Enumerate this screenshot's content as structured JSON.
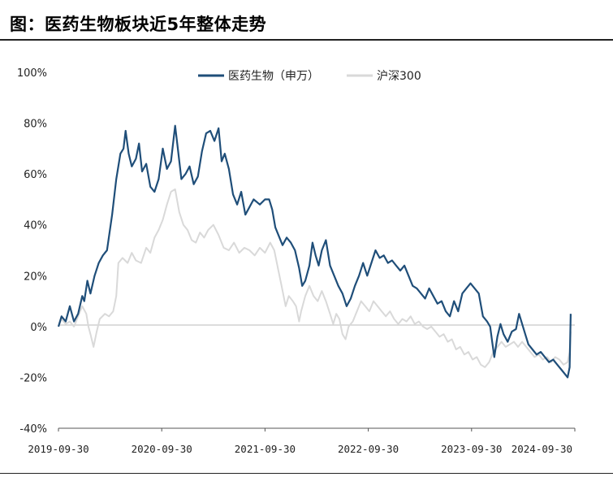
{
  "figure_title": "图：医药生物板块近5年整体走势",
  "chart_data": {
    "type": "line",
    "title": "",
    "xlabel": "",
    "ylabel": "",
    "ylim": [
      -40,
      100
    ],
    "y_ticks": [
      -40,
      -20,
      0,
      20,
      40,
      60,
      80,
      100
    ],
    "y_tick_labels": [
      "-40%",
      "-20%",
      "0%",
      "20%",
      "40%",
      "60%",
      "80%",
      "100%"
    ],
    "x_tick_labels": [
      "2019-09-30",
      "2020-09-30",
      "2021-09-30",
      "2022-09-30",
      "2023-09-30",
      "2024-09-30"
    ],
    "x_range_years": [
      2019.75,
      2024.75
    ],
    "grid": false,
    "legend_position": "top-center",
    "series": [
      {
        "name": "医药生物（申万）",
        "color": "#1f4e79",
        "points": [
          [
            2019.75,
            0
          ],
          [
            2019.78,
            4
          ],
          [
            2019.82,
            2
          ],
          [
            2019.86,
            8
          ],
          [
            2019.9,
            2
          ],
          [
            2019.94,
            5
          ],
          [
            2019.98,
            12
          ],
          [
            2020.0,
            10
          ],
          [
            2020.03,
            18
          ],
          [
            2020.06,
            13
          ],
          [
            2020.1,
            20
          ],
          [
            2020.14,
            25
          ],
          [
            2020.18,
            28
          ],
          [
            2020.22,
            30
          ],
          [
            2020.27,
            44
          ],
          [
            2020.31,
            58
          ],
          [
            2020.35,
            68
          ],
          [
            2020.38,
            70
          ],
          [
            2020.4,
            77
          ],
          [
            2020.43,
            68
          ],
          [
            2020.46,
            63
          ],
          [
            2020.5,
            66
          ],
          [
            2020.53,
            72
          ],
          [
            2020.56,
            61
          ],
          [
            2020.6,
            64
          ],
          [
            2020.64,
            55
          ],
          [
            2020.68,
            53
          ],
          [
            2020.72,
            58
          ],
          [
            2020.76,
            70
          ],
          [
            2020.8,
            62
          ],
          [
            2020.84,
            65
          ],
          [
            2020.88,
            79
          ],
          [
            2020.9,
            72
          ],
          [
            2020.94,
            58
          ],
          [
            2020.98,
            60
          ],
          [
            2021.02,
            63
          ],
          [
            2021.06,
            56
          ],
          [
            2021.1,
            59
          ],
          [
            2021.14,
            69
          ],
          [
            2021.18,
            76
          ],
          [
            2021.22,
            77
          ],
          [
            2021.26,
            73
          ],
          [
            2021.3,
            78
          ],
          [
            2021.33,
            65
          ],
          [
            2021.36,
            68
          ],
          [
            2021.4,
            62
          ],
          [
            2021.44,
            52
          ],
          [
            2021.48,
            48
          ],
          [
            2021.52,
            53
          ],
          [
            2021.56,
            44
          ],
          [
            2021.6,
            47
          ],
          [
            2021.64,
            50
          ],
          [
            2021.7,
            48
          ],
          [
            2021.75,
            50
          ],
          [
            2021.79,
            50
          ],
          [
            2021.82,
            46
          ],
          [
            2021.85,
            39
          ],
          [
            2021.88,
            36
          ],
          [
            2021.92,
            32
          ],
          [
            2021.96,
            35
          ],
          [
            2022.0,
            33
          ],
          [
            2022.04,
            30
          ],
          [
            2022.08,
            23
          ],
          [
            2022.11,
            16
          ],
          [
            2022.14,
            18
          ],
          [
            2022.18,
            24
          ],
          [
            2022.21,
            33
          ],
          [
            2022.24,
            28
          ],
          [
            2022.27,
            24
          ],
          [
            2022.3,
            30
          ],
          [
            2022.34,
            34
          ],
          [
            2022.38,
            24
          ],
          [
            2022.42,
            20
          ],
          [
            2022.46,
            16
          ],
          [
            2022.5,
            13
          ],
          [
            2022.54,
            8
          ],
          [
            2022.58,
            11
          ],
          [
            2022.62,
            16
          ],
          [
            2022.66,
            20
          ],
          [
            2022.7,
            25
          ],
          [
            2022.74,
            20
          ],
          [
            2022.78,
            25
          ],
          [
            2022.82,
            30
          ],
          [
            2022.86,
            27
          ],
          [
            2022.9,
            28
          ],
          [
            2022.94,
            25
          ],
          [
            2022.98,
            26
          ],
          [
            2023.02,
            24
          ],
          [
            2023.06,
            22
          ],
          [
            2023.1,
            24
          ],
          [
            2023.14,
            20
          ],
          [
            2023.18,
            16
          ],
          [
            2023.22,
            15
          ],
          [
            2023.26,
            13
          ],
          [
            2023.3,
            11
          ],
          [
            2023.34,
            15
          ],
          [
            2023.38,
            12
          ],
          [
            2023.42,
            9
          ],
          [
            2023.46,
            10
          ],
          [
            2023.5,
            6
          ],
          [
            2023.54,
            4
          ],
          [
            2023.58,
            10
          ],
          [
            2023.62,
            6
          ],
          [
            2023.66,
            13
          ],
          [
            2023.7,
            15
          ],
          [
            2023.74,
            17
          ],
          [
            2023.78,
            15
          ],
          [
            2023.82,
            13
          ],
          [
            2023.86,
            4
          ],
          [
            2023.9,
            2
          ],
          [
            2023.93,
            0
          ],
          [
            2023.95,
            -6
          ],
          [
            2023.97,
            -12
          ],
          [
            2024.0,
            -4
          ],
          [
            2024.03,
            1
          ],
          [
            2024.06,
            -3
          ],
          [
            2024.1,
            -6
          ],
          [
            2024.14,
            -2
          ],
          [
            2024.18,
            -1
          ],
          [
            2024.21,
            5
          ],
          [
            2024.24,
            1
          ],
          [
            2024.27,
            -3
          ],
          [
            2024.3,
            -7
          ],
          [
            2024.34,
            -9
          ],
          [
            2024.38,
            -11
          ],
          [
            2024.42,
            -10
          ],
          [
            2024.46,
            -12
          ],
          [
            2024.5,
            -14
          ],
          [
            2024.54,
            -13
          ],
          [
            2024.58,
            -15
          ],
          [
            2024.62,
            -17
          ],
          [
            2024.66,
            -19
          ],
          [
            2024.68,
            -20
          ],
          [
            2024.7,
            -16
          ],
          [
            2024.71,
            5
          ]
        ]
      },
      {
        "name": "沪深300",
        "color": "#d9d9d9",
        "points": [
          [
            2019.75,
            0
          ],
          [
            2019.78,
            3
          ],
          [
            2019.82,
            1
          ],
          [
            2019.86,
            2
          ],
          [
            2019.9,
            0
          ],
          [
            2019.94,
            4
          ],
          [
            2019.98,
            8
          ],
          [
            2020.02,
            5
          ],
          [
            2020.04,
            0
          ],
          [
            2020.06,
            -3
          ],
          [
            2020.09,
            -8
          ],
          [
            2020.12,
            -2
          ],
          [
            2020.15,
            3
          ],
          [
            2020.2,
            5
          ],
          [
            2020.24,
            4
          ],
          [
            2020.28,
            6
          ],
          [
            2020.31,
            12
          ],
          [
            2020.33,
            25
          ],
          [
            2020.37,
            27
          ],
          [
            2020.42,
            25
          ],
          [
            2020.46,
            29
          ],
          [
            2020.5,
            26
          ],
          [
            2020.55,
            25
          ],
          [
            2020.6,
            31
          ],
          [
            2020.64,
            29
          ],
          [
            2020.68,
            35
          ],
          [
            2020.72,
            38
          ],
          [
            2020.76,
            42
          ],
          [
            2020.8,
            48
          ],
          [
            2020.84,
            53
          ],
          [
            2020.88,
            54
          ],
          [
            2020.92,
            45
          ],
          [
            2020.96,
            40
          ],
          [
            2021.0,
            38
          ],
          [
            2021.04,
            34
          ],
          [
            2021.08,
            33
          ],
          [
            2021.12,
            37
          ],
          [
            2021.16,
            35
          ],
          [
            2021.2,
            38
          ],
          [
            2021.25,
            40
          ],
          [
            2021.3,
            36
          ],
          [
            2021.35,
            31
          ],
          [
            2021.4,
            30
          ],
          [
            2021.45,
            33
          ],
          [
            2021.5,
            29
          ],
          [
            2021.55,
            31
          ],
          [
            2021.6,
            30
          ],
          [
            2021.65,
            28
          ],
          [
            2021.7,
            31
          ],
          [
            2021.75,
            29
          ],
          [
            2021.8,
            33
          ],
          [
            2021.84,
            30
          ],
          [
            2021.88,
            22
          ],
          [
            2021.91,
            16
          ],
          [
            2021.93,
            12
          ],
          [
            2021.95,
            8
          ],
          [
            2021.98,
            12
          ],
          [
            2022.02,
            10
          ],
          [
            2022.05,
            8
          ],
          [
            2022.08,
            2
          ],
          [
            2022.1,
            6
          ],
          [
            2022.14,
            12
          ],
          [
            2022.18,
            16
          ],
          [
            2022.22,
            12
          ],
          [
            2022.26,
            10
          ],
          [
            2022.3,
            14
          ],
          [
            2022.34,
            10
          ],
          [
            2022.38,
            5
          ],
          [
            2022.41,
            1
          ],
          [
            2022.44,
            5
          ],
          [
            2022.47,
            3
          ],
          [
            2022.5,
            -3
          ],
          [
            2022.53,
            -5
          ],
          [
            2022.56,
            0
          ],
          [
            2022.6,
            2
          ],
          [
            2022.64,
            6
          ],
          [
            2022.68,
            10
          ],
          [
            2022.72,
            8
          ],
          [
            2022.76,
            6
          ],
          [
            2022.8,
            10
          ],
          [
            2022.84,
            8
          ],
          [
            2022.88,
            6
          ],
          [
            2022.92,
            4
          ],
          [
            2022.96,
            6
          ],
          [
            2023.0,
            3
          ],
          [
            2023.04,
            1
          ],
          [
            2023.08,
            3
          ],
          [
            2023.12,
            2
          ],
          [
            2023.16,
            4
          ],
          [
            2023.2,
            1
          ],
          [
            2023.24,
            2
          ],
          [
            2023.28,
            0
          ],
          [
            2023.32,
            -1
          ],
          [
            2023.36,
            0
          ],
          [
            2023.4,
            -2
          ],
          [
            2023.44,
            -4
          ],
          [
            2023.48,
            -3
          ],
          [
            2023.52,
            -6
          ],
          [
            2023.56,
            -5
          ],
          [
            2023.6,
            -9
          ],
          [
            2023.64,
            -8
          ],
          [
            2023.68,
            -11
          ],
          [
            2023.72,
            -10
          ],
          [
            2023.76,
            -13
          ],
          [
            2023.8,
            -12
          ],
          [
            2023.84,
            -15
          ],
          [
            2023.88,
            -16
          ],
          [
            2023.92,
            -14
          ],
          [
            2023.96,
            -10
          ],
          [
            2024.0,
            -8
          ],
          [
            2024.04,
            -6
          ],
          [
            2024.08,
            -8
          ],
          [
            2024.12,
            -7
          ],
          [
            2024.16,
            -6
          ],
          [
            2024.2,
            -8
          ],
          [
            2024.24,
            -6
          ],
          [
            2024.28,
            -8
          ],
          [
            2024.32,
            -10
          ],
          [
            2024.36,
            -12
          ],
          [
            2024.4,
            -11
          ],
          [
            2024.44,
            -13
          ],
          [
            2024.48,
            -12
          ],
          [
            2024.52,
            -14
          ],
          [
            2024.56,
            -12
          ],
          [
            2024.6,
            -13
          ],
          [
            2024.64,
            -15
          ],
          [
            2024.68,
            -14
          ],
          [
            2024.7,
            -10
          ],
          [
            2024.71,
            -2
          ]
        ]
      }
    ]
  }
}
